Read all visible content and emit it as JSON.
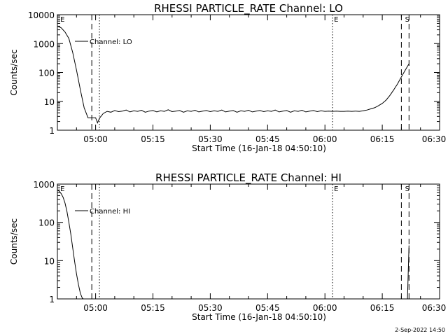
{
  "footer": {
    "timestamp": "2-Sep-2022 14:50"
  },
  "chart_data": [
    {
      "type": "line",
      "title": "RHESSI PARTICLE_RATE Channel: LO",
      "xlabel": "Start Time (16-Jan-18 04:50:10)",
      "ylabel": "Counts/sec",
      "xlim_minutes": [
        0,
        100
      ],
      "ylim": [
        1,
        10000
      ],
      "log_y": true,
      "x_ticks": [
        {
          "minute": 10,
          "label": "05:00"
        },
        {
          "minute": 25,
          "label": "05:15"
        },
        {
          "minute": 40,
          "label": "05:30"
        },
        {
          "minute": 55,
          "label": "05:45"
        },
        {
          "minute": 70,
          "label": "06:00"
        },
        {
          "minute": 85,
          "label": "06:15"
        },
        {
          "minute": 100,
          "label": "06:30"
        }
      ],
      "y_ticks": [
        {
          "value": 1,
          "label": "1"
        },
        {
          "value": 10,
          "label": "10"
        },
        {
          "value": 100,
          "label": "100"
        },
        {
          "value": 1000,
          "label": "1000"
        },
        {
          "value": 10000,
          "label": "10000"
        }
      ],
      "legend": "Channel: LO",
      "markers": [
        {
          "minute": 0.4,
          "label": "E",
          "style": "none"
        },
        {
          "minute": 9.0,
          "label": "",
          "style": "dashed"
        },
        {
          "minute": 11.0,
          "label": "",
          "style": "dotted"
        },
        {
          "minute": 72.0,
          "label": "E",
          "style": "dotted"
        },
        {
          "minute": 90.0,
          "label": "",
          "style": "dashed"
        },
        {
          "minute": 90.6,
          "label": "S",
          "style": "none"
        },
        {
          "minute": 92.0,
          "label": "",
          "style": "dashed"
        }
      ],
      "series": [
        {
          "x": [
            0,
            1,
            2,
            3,
            4,
            5,
            6,
            7,
            8,
            9,
            10,
            10.5,
            11,
            12,
            13,
            14,
            15,
            16,
            17,
            18,
            19,
            20,
            21,
            22,
            23,
            24,
            25,
            26,
            27,
            28,
            29,
            30,
            31,
            32,
            33,
            34,
            35,
            36,
            37,
            38,
            39,
            40,
            41,
            42,
            43,
            44,
            45,
            46,
            47,
            48,
            49,
            50,
            51,
            52,
            53,
            54,
            55,
            56,
            57,
            58,
            59,
            60,
            61,
            62,
            63,
            64,
            65,
            66,
            67,
            68,
            69,
            70,
            71,
            72,
            73,
            74,
            75,
            76,
            77,
            78,
            79,
            80,
            81,
            82,
            83,
            84,
            85,
            86,
            87,
            88,
            89,
            90,
            91,
            92
          ],
          "y": [
            4000,
            3500,
            2500,
            1500,
            500,
            120,
            25,
            6,
            2.7,
            2.7,
            2.7,
            1.8,
            2.6,
            3.8,
            4.5,
            4.2,
            4.8,
            4.4,
            4.6,
            5.0,
            4.3,
            4.7,
            4.5,
            4.9,
            4.2,
            4.6,
            4.8,
            4.3,
            4.7,
            4.5,
            5.1,
            4.4,
            4.6,
            4.8,
            4.2,
            4.7,
            4.5,
            4.9,
            4.3,
            4.6,
            4.8,
            4.4,
            4.7,
            4.5,
            5.0,
            4.3,
            4.6,
            4.8,
            4.2,
            4.7,
            4.5,
            4.9,
            4.3,
            4.6,
            4.8,
            4.4,
            4.7,
            4.5,
            5.0,
            4.3,
            4.6,
            4.8,
            4.2,
            4.7,
            4.5,
            4.9,
            4.3,
            4.6,
            4.8,
            4.4,
            4.7,
            4.5,
            4.6,
            4.5,
            4.6,
            4.5,
            4.5,
            4.6,
            4.5,
            4.6,
            4.5,
            4.7,
            5.0,
            5.5,
            6.0,
            7.0,
            8.5,
            11,
            16,
            25,
            40,
            70,
            120,
            200
          ]
        }
      ]
    },
    {
      "type": "line",
      "title": "RHESSI PARTICLE_RATE Channel: HI",
      "xlabel": "Start Time (16-Jan-18 04:50:10)",
      "ylabel": "Counts/sec",
      "xlim_minutes": [
        0,
        100
      ],
      "ylim": [
        1,
        1000
      ],
      "log_y": true,
      "x_ticks": [
        {
          "minute": 10,
          "label": "05:00"
        },
        {
          "minute": 25,
          "label": "05:15"
        },
        {
          "minute": 40,
          "label": "05:30"
        },
        {
          "minute": 55,
          "label": "05:45"
        },
        {
          "minute": 70,
          "label": "06:00"
        },
        {
          "minute": 85,
          "label": "06:15"
        },
        {
          "minute": 100,
          "label": "06:30"
        }
      ],
      "y_ticks": [
        {
          "value": 1,
          "label": "1"
        },
        {
          "value": 10,
          "label": "10"
        },
        {
          "value": 100,
          "label": "100"
        },
        {
          "value": 1000,
          "label": "1000"
        }
      ],
      "legend": "Channel: HI",
      "markers": [
        {
          "minute": 0.4,
          "label": "E",
          "style": "none"
        },
        {
          "minute": 9.0,
          "label": "",
          "style": "dashed"
        },
        {
          "minute": 11.0,
          "label": "",
          "style": "dotted"
        },
        {
          "minute": 72.0,
          "label": "E",
          "style": "dotted"
        },
        {
          "minute": 90.0,
          "label": "",
          "style": "dashed"
        },
        {
          "minute": 90.6,
          "label": "S",
          "style": "none"
        },
        {
          "minute": 92.0,
          "label": "",
          "style": "dashed"
        }
      ],
      "series": [
        {
          "x": [
            0,
            0.5,
            1,
            1.5,
            2,
            2.5,
            3,
            3.5,
            4,
            4.5,
            5,
            5.5,
            6,
            6.5,
            6.8
          ],
          "y": [
            700,
            650,
            560,
            450,
            320,
            190,
            100,
            50,
            22,
            9.5,
            4.5,
            2.4,
            1.4,
            1.05,
            1.0
          ]
        },
        {
          "x": [
            91.6,
            92.0
          ],
          "y": [
            1.0,
            25
          ]
        }
      ]
    }
  ]
}
